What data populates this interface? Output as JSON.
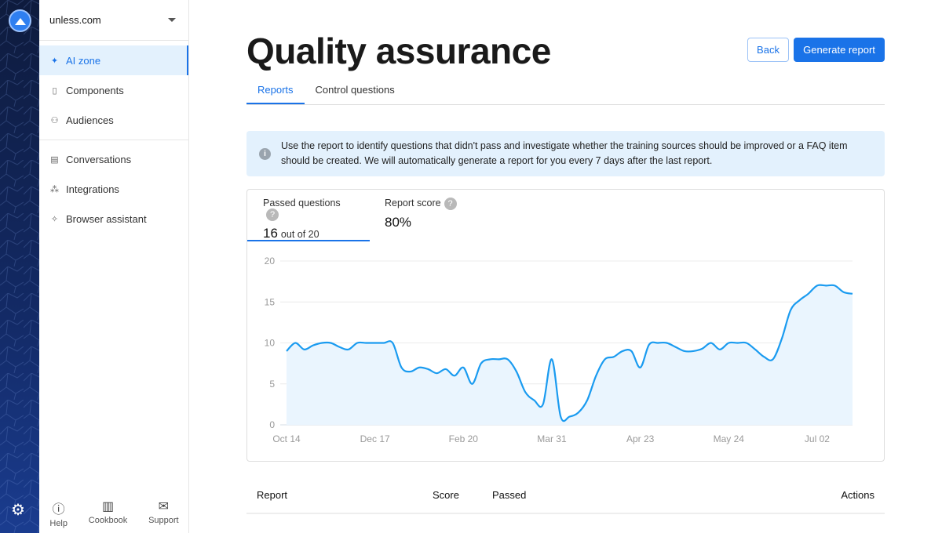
{
  "brand": {
    "accent": "#1a73e8",
    "line_color": "#1a9bf0"
  },
  "sidebar": {
    "org": "unless.com",
    "items": [
      {
        "label": "AI zone",
        "icon": "sparkles-icon",
        "active": true
      },
      {
        "label": "Components",
        "icon": "components-icon"
      },
      {
        "label": "Audiences",
        "icon": "audiences-icon"
      },
      {
        "label": "Conversations",
        "icon": "chat-icon"
      },
      {
        "label": "Integrations",
        "icon": "integrations-icon"
      },
      {
        "label": "Browser assistant",
        "icon": "puzzle-icon"
      }
    ],
    "footer": [
      {
        "label": "Help",
        "icon": "help-icon"
      },
      {
        "label": "Cookbook",
        "icon": "book-icon"
      },
      {
        "label": "Support",
        "icon": "mail-icon"
      }
    ]
  },
  "header": {
    "title": "Quality assurance",
    "back": "Back",
    "generate": "Generate report"
  },
  "tabs": [
    {
      "label": "Reports",
      "active": true
    },
    {
      "label": "Control questions"
    }
  ],
  "info": "Use the report to identify questions that didn't pass and investigate whether the training sources should be improved or a FAQ item should be created. We will automatically generate a report for you every 7 days after the last report.",
  "stats": {
    "passed_label": "Passed questions",
    "passed_value": "16",
    "passed_suffix": "out of 20",
    "score_label": "Report score",
    "score_value": "80%"
  },
  "chart_data": {
    "type": "area",
    "ylim": [
      0,
      20
    ],
    "y_ticks": [
      "0",
      "5",
      "10",
      "15",
      "20"
    ],
    "x_ticks": [
      "Oct 14",
      "Dec 17",
      "Feb 20",
      "Mar 31",
      "Apr 23",
      "May 24",
      "Jul 02"
    ],
    "grid": true,
    "values": [
      9,
      10,
      9.2,
      9.7,
      10,
      10,
      9.5,
      9.2,
      10,
      10,
      10,
      10,
      10,
      7,
      6.5,
      7,
      6.8,
      6.3,
      6.8,
      6,
      7,
      5,
      7.5,
      8,
      8,
      8,
      6.5,
      4,
      3,
      2.5,
      8,
      1,
      1,
      1.5,
      3,
      6,
      8,
      8.3,
      9,
      9,
      7,
      9.8,
      10,
      10,
      9.5,
      9,
      9,
      9.3,
      10,
      9.2,
      10,
      10,
      10,
      9.2,
      8.3,
      8,
      10.5,
      14,
      15.2,
      16,
      17,
      17,
      17,
      16.2,
      16
    ]
  },
  "table": {
    "headers": [
      "Report",
      "Score",
      "Passed",
      "Actions"
    ]
  }
}
